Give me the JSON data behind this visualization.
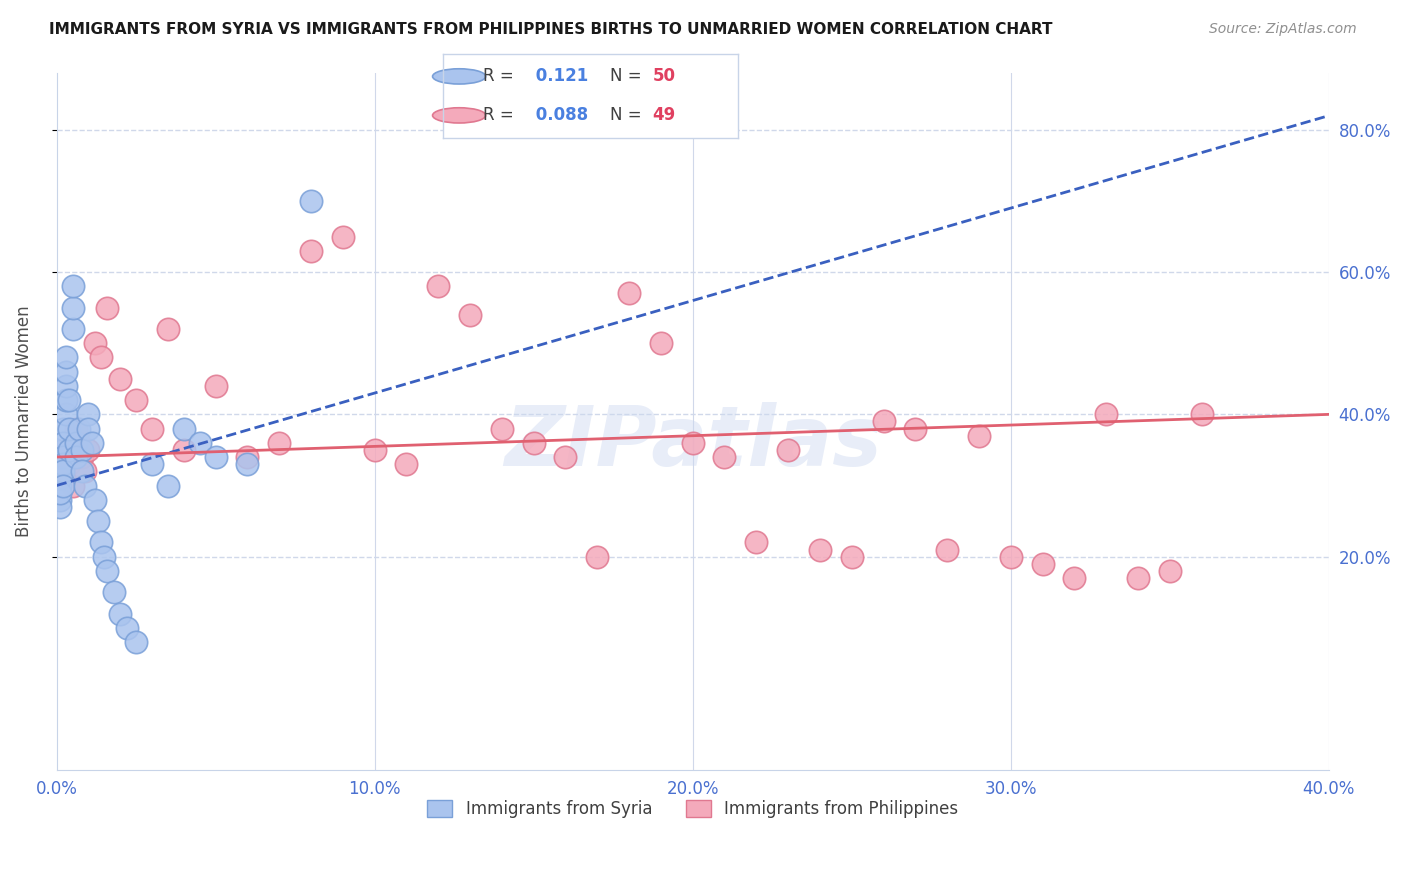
{
  "title": "IMMIGRANTS FROM SYRIA VS IMMIGRANTS FROM PHILIPPINES BIRTHS TO UNMARRIED WOMEN CORRELATION CHART",
  "source": "Source: ZipAtlas.com",
  "ylabel": "Births to Unmarried Women",
  "xlim": [
    0.0,
    0.4
  ],
  "ylim": [
    -0.1,
    0.88
  ],
  "yticks": [
    0.2,
    0.4,
    0.6,
    0.8
  ],
  "xticks": [
    0.0,
    0.1,
    0.2,
    0.3,
    0.4
  ],
  "xtick_labels": [
    "0.0%",
    "10.0%",
    "20.0%",
    "30.0%",
    "40.0%"
  ],
  "ytick_labels": [
    "20.0%",
    "40.0%",
    "60.0%",
    "80.0%"
  ],
  "syria_color": "#aac4ee",
  "syria_edge": "#7aa0d8",
  "phil_color": "#f4aabb",
  "phil_edge": "#e07890",
  "trend_syria_color": "#3a60c0",
  "trend_phil_color": "#e06070",
  "watermark_text": "ZIPatlas",
  "legend_R_color": "#4a80e0",
  "legend_N_color": "#e04060",
  "background_color": "#ffffff",
  "grid_color": "#d0d8ea",
  "axis_label_color": "#4a70d0",
  "syria_x": [
    0.001,
    0.001,
    0.001,
    0.001,
    0.001,
    0.001,
    0.001,
    0.002,
    0.002,
    0.002,
    0.002,
    0.002,
    0.002,
    0.002,
    0.003,
    0.003,
    0.003,
    0.003,
    0.003,
    0.004,
    0.004,
    0.004,
    0.005,
    0.005,
    0.005,
    0.006,
    0.006,
    0.007,
    0.008,
    0.008,
    0.009,
    0.01,
    0.01,
    0.011,
    0.012,
    0.013,
    0.014,
    0.015,
    0.016,
    0.018,
    0.02,
    0.022,
    0.025,
    0.03,
    0.035,
    0.04,
    0.045,
    0.05,
    0.06,
    0.08
  ],
  "syria_y": [
    0.3,
    0.32,
    0.28,
    0.31,
    0.27,
    0.29,
    0.33,
    0.35,
    0.38,
    0.36,
    0.34,
    0.33,
    0.32,
    0.3,
    0.4,
    0.42,
    0.44,
    0.46,
    0.48,
    0.35,
    0.38,
    0.42,
    0.52,
    0.55,
    0.58,
    0.36,
    0.34,
    0.38,
    0.35,
    0.32,
    0.3,
    0.4,
    0.38,
    0.36,
    0.28,
    0.25,
    0.22,
    0.2,
    0.18,
    0.15,
    0.12,
    0.1,
    0.08,
    0.33,
    0.3,
    0.38,
    0.36,
    0.34,
    0.33,
    0.7
  ],
  "phil_x": [
    0.002,
    0.003,
    0.004,
    0.005,
    0.006,
    0.007,
    0.008,
    0.009,
    0.01,
    0.012,
    0.014,
    0.016,
    0.02,
    0.025,
    0.03,
    0.035,
    0.04,
    0.05,
    0.06,
    0.07,
    0.08,
    0.09,
    0.1,
    0.11,
    0.12,
    0.13,
    0.14,
    0.15,
    0.16,
    0.17,
    0.18,
    0.19,
    0.2,
    0.21,
    0.22,
    0.23,
    0.24,
    0.25,
    0.26,
    0.27,
    0.28,
    0.29,
    0.3,
    0.31,
    0.32,
    0.33,
    0.34,
    0.35,
    0.36
  ],
  "phil_y": [
    0.32,
    0.35,
    0.33,
    0.3,
    0.38,
    0.36,
    0.34,
    0.32,
    0.35,
    0.5,
    0.48,
    0.55,
    0.45,
    0.42,
    0.38,
    0.52,
    0.35,
    0.44,
    0.34,
    0.36,
    0.63,
    0.65,
    0.35,
    0.33,
    0.58,
    0.54,
    0.38,
    0.36,
    0.34,
    0.2,
    0.57,
    0.5,
    0.36,
    0.34,
    0.22,
    0.35,
    0.21,
    0.2,
    0.39,
    0.38,
    0.21,
    0.37,
    0.2,
    0.19,
    0.17,
    0.4,
    0.17,
    0.18,
    0.4
  ],
  "syria_trend_x0": 0.0,
  "syria_trend_x1": 0.4,
  "syria_trend_y0": 0.3,
  "syria_trend_y1": 0.82,
  "phil_trend_x0": 0.0,
  "phil_trend_x1": 0.4,
  "phil_trend_y0": 0.34,
  "phil_trend_y1": 0.4
}
